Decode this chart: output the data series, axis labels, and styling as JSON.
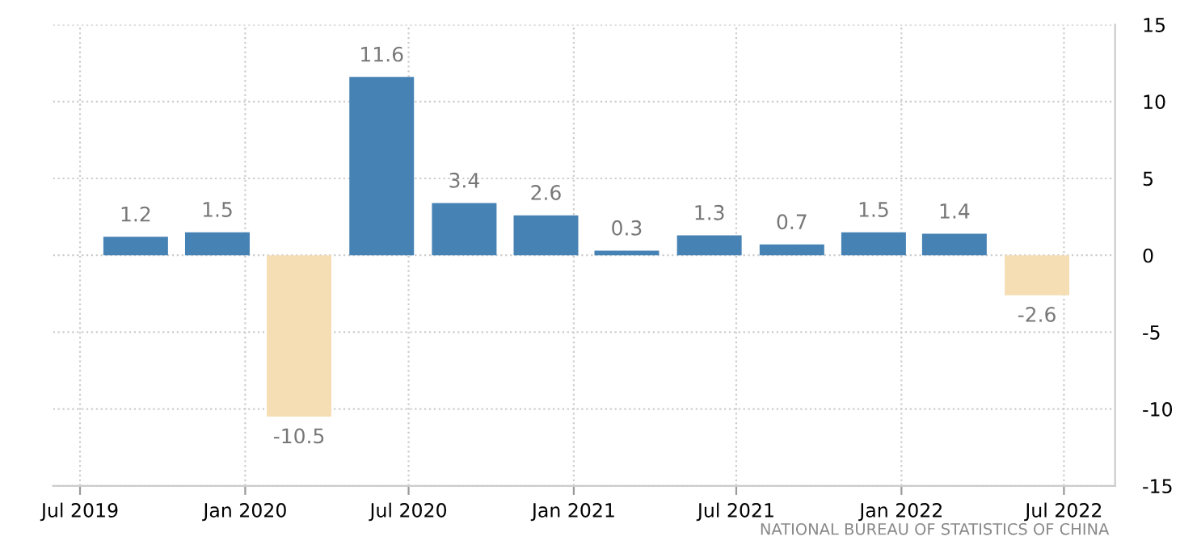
{
  "chart_data": {
    "type": "bar",
    "x": [
      "2019-09-01",
      "2019-12-01",
      "2020-03-01",
      "2020-06-01",
      "2020-09-01",
      "2020-12-01",
      "2021-03-01",
      "2021-06-01",
      "2021-09-01",
      "2021-12-01",
      "2022-03-01",
      "2022-06-01"
    ],
    "values": [
      1.2,
      1.5,
      -10.5,
      11.6,
      3.4,
      2.6,
      0.3,
      1.3,
      0.7,
      1.5,
      1.4,
      -2.6
    ],
    "colors": [
      "#4682b4",
      "#4682b4",
      "#f5deb3",
      "#4682b4",
      "#4682b4",
      "#4682b4",
      "#4682b4",
      "#4682b4",
      "#4682b4",
      "#4682b4",
      "#4682b4",
      "#f5deb3"
    ],
    "data_labels": true,
    "xlim": [
      "2019-06-01",
      "2022-08-27"
    ],
    "xticks": [
      {
        "value": "2019-07",
        "label": "Jul 2019"
      },
      {
        "value": "2020-01",
        "label": "Jan 2020"
      },
      {
        "value": "2020-07",
        "label": "Jul 2020"
      },
      {
        "value": "2021-01",
        "label": "Jan 2021"
      },
      {
        "value": "2021-07",
        "label": "Jul 2021"
      },
      {
        "value": "2022-01",
        "label": "Jan 2022"
      },
      {
        "value": "2022-07",
        "label": "Jul 2022"
      }
    ],
    "ylim": [
      -15,
      15
    ],
    "yticks": [
      -15,
      -10,
      -5,
      0,
      5,
      10,
      15
    ],
    "grid": true,
    "annotations": [
      "NATIONAL BUREAU OF STATISTICS OF CHINA"
    ]
  }
}
